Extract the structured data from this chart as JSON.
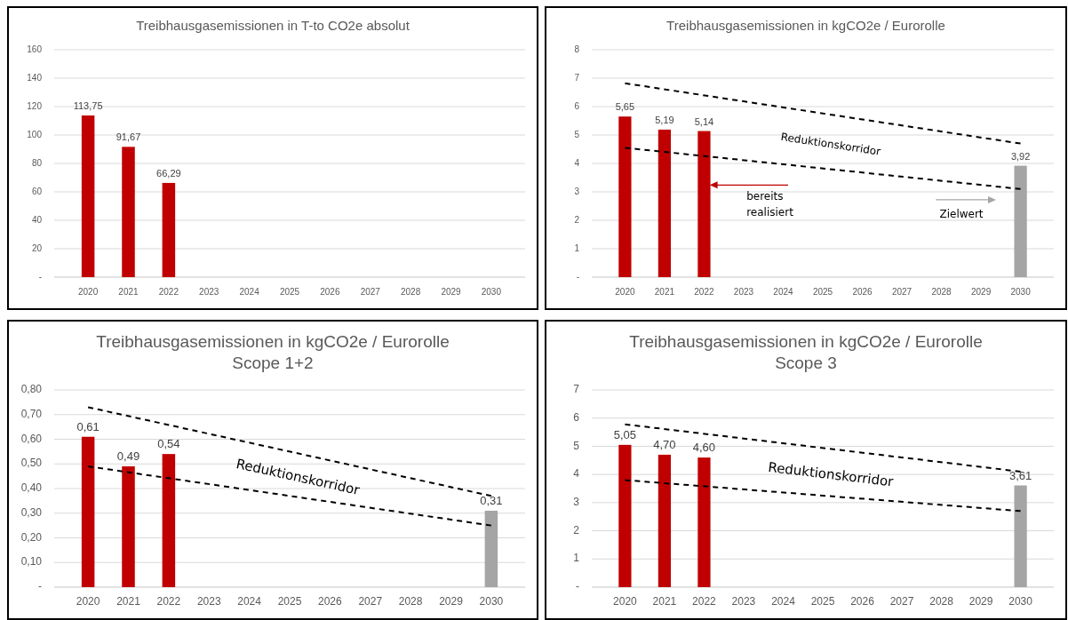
{
  "chart_data": [
    {
      "type": "bar",
      "title": "Treibhausgasemissionen in T-to CO2e absolut",
      "categories": [
        "2020",
        "2021",
        "2022",
        "2023",
        "2024",
        "2025",
        "2026",
        "2027",
        "2028",
        "2029",
        "2030"
      ],
      "series": [
        {
          "values": [
            113.75,
            91.67,
            66.29,
            null,
            null,
            null,
            null,
            null,
            null,
            null,
            null
          ],
          "colors": [
            "#c00000",
            "#c00000",
            "#c00000",
            null,
            null,
            null,
            null,
            null,
            null,
            null,
            null
          ],
          "value_labels": [
            "113,75",
            "91,67",
            "66,29",
            null,
            null,
            null,
            null,
            null,
            null,
            null,
            null
          ]
        }
      ],
      "ylim": [
        0,
        160
      ],
      "yticks": [
        {
          "value": 0,
          "label": "-"
        },
        20,
        40,
        60,
        80,
        100,
        120,
        140,
        160
      ],
      "grid": "y"
    },
    {
      "type": "bar",
      "title": "Treibhausgasemissionen in kgCO2e / Eurorolle",
      "categories": [
        "2020",
        "2021",
        "2022",
        "2023",
        "2024",
        "2025",
        "2026",
        "2027",
        "2028",
        "2029",
        "2030"
      ],
      "series": [
        {
          "values": [
            5.65,
            5.19,
            5.14,
            null,
            null,
            null,
            null,
            null,
            null,
            null,
            3.92
          ],
          "colors": [
            "#c00000",
            "#c00000",
            "#c00000",
            null,
            null,
            null,
            null,
            null,
            null,
            null,
            "#a5a5a5"
          ],
          "value_labels": [
            "5,65",
            "5,19",
            "5,14",
            null,
            null,
            null,
            null,
            null,
            null,
            null,
            "3,92"
          ]
        },
        {
          "type": "line",
          "values": [
            6.82,
            null,
            null,
            null,
            null,
            null,
            null,
            null,
            null,
            null,
            4.7
          ],
          "color": "#000000",
          "line_style": "dashed",
          "marker": "none"
        },
        {
          "type": "line",
          "values": [
            4.55,
            null,
            null,
            null,
            null,
            null,
            null,
            null,
            null,
            null,
            3.1
          ],
          "color": "#000000",
          "line_style": "dashed",
          "marker": "none"
        }
      ],
      "ylim": [
        0,
        8
      ],
      "yticks": [
        {
          "value": 0,
          "label": "-"
        },
        1,
        2,
        3,
        4,
        5,
        6,
        7,
        8
      ],
      "grid": "y",
      "annotations": [
        "Reduktionskorridor",
        "bereits realisiert",
        "Zielwert"
      ]
    },
    {
      "type": "bar",
      "title": "Treibhausgasemissionen in kgCO2e / Eurorolle",
      "subtitle": "Scope 1+2",
      "categories": [
        "2020",
        "2021",
        "2022",
        "2023",
        "2024",
        "2025",
        "2026",
        "2027",
        "2028",
        "2029",
        "2030"
      ],
      "series": [
        {
          "values": [
            0.61,
            0.49,
            0.54,
            null,
            null,
            null,
            null,
            null,
            null,
            null,
            0.31
          ],
          "colors": [
            "#c00000",
            "#c00000",
            "#c00000",
            null,
            null,
            null,
            null,
            null,
            null,
            null,
            "#a5a5a5"
          ],
          "value_labels": [
            "0,61",
            "0,49",
            "0,54",
            null,
            null,
            null,
            null,
            null,
            null,
            null,
            "0,31"
          ]
        },
        {
          "type": "line",
          "values": [
            0.73,
            null,
            null,
            null,
            null,
            null,
            null,
            null,
            null,
            null,
            0.37
          ],
          "color": "#000000",
          "line_style": "dashed",
          "marker": "none"
        },
        {
          "type": "line",
          "values": [
            0.49,
            null,
            null,
            null,
            null,
            null,
            null,
            null,
            null,
            null,
            0.25
          ],
          "color": "#000000",
          "line_style": "dashed",
          "marker": "none"
        }
      ],
      "ylim": [
        0,
        0.8
      ],
      "yticks": [
        {
          "value": 0,
          "label": "-"
        },
        {
          "value": 0.1,
          "label": "0,10"
        },
        {
          "value": 0.2,
          "label": "0,20"
        },
        {
          "value": 0.3,
          "label": "0,30"
        },
        {
          "value": 0.4,
          "label": "0,40"
        },
        {
          "value": 0.5,
          "label": "0,50"
        },
        {
          "value": 0.6,
          "label": "0,60"
        },
        {
          "value": 0.7,
          "label": "0,70"
        },
        {
          "value": 0.8,
          "label": "0,80"
        }
      ],
      "grid": "y",
      "annotations": [
        "Reduktionskorridor"
      ]
    },
    {
      "type": "bar",
      "title": "Treibhausgasemissionen in kgCO2e / Eurorolle",
      "subtitle": "Scope 3",
      "categories": [
        "2020",
        "2021",
        "2022",
        "2023",
        "2024",
        "2025",
        "2026",
        "2027",
        "2028",
        "2029",
        "2030"
      ],
      "series": [
        {
          "values": [
            5.05,
            4.7,
            4.6,
            null,
            null,
            null,
            null,
            null,
            null,
            null,
            3.61
          ],
          "colors": [
            "#c00000",
            "#c00000",
            "#c00000",
            null,
            null,
            null,
            null,
            null,
            null,
            null,
            "#a5a5a5"
          ],
          "value_labels": [
            "5,05",
            "4,70",
            "4,60",
            null,
            null,
            null,
            null,
            null,
            null,
            null,
            "3,61"
          ]
        },
        {
          "type": "line",
          "values": [
            5.78,
            null,
            null,
            null,
            null,
            null,
            null,
            null,
            null,
            null,
            4.1
          ],
          "color": "#000000",
          "line_style": "dashed",
          "marker": "none"
        },
        {
          "type": "line",
          "values": [
            3.8,
            null,
            null,
            null,
            null,
            null,
            null,
            null,
            null,
            null,
            2.7
          ],
          "color": "#000000",
          "line_style": "dashed",
          "marker": "none"
        }
      ],
      "ylim": [
        0,
        7
      ],
      "yticks": [
        {
          "value": 0,
          "label": "-"
        },
        1,
        2,
        3,
        4,
        5,
        6,
        7
      ],
      "grid": "y",
      "annotations": [
        "Reduktionskorridor"
      ]
    }
  ]
}
